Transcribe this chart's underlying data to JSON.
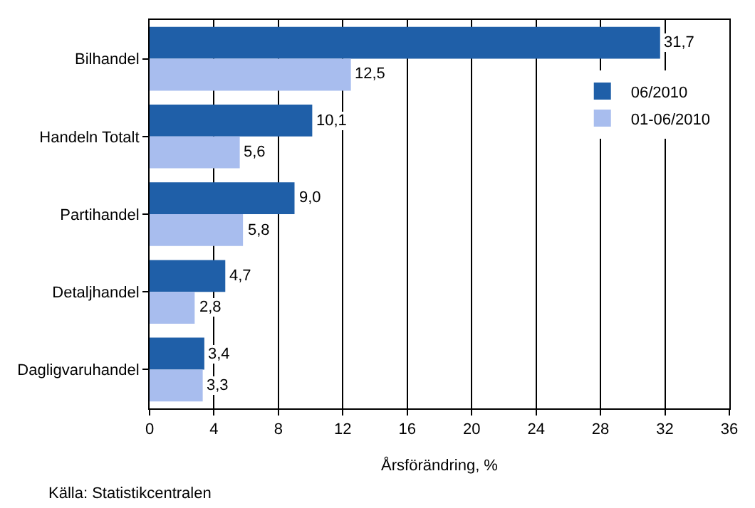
{
  "chart_data": {
    "type": "bar",
    "orientation": "horizontal",
    "xlabel": "Årsförändring, %",
    "categories": [
      "Bilhandel",
      "Handeln Totalt",
      "Partihandel",
      "Detaljhandel",
      "Dagligvaruhandel"
    ],
    "series": [
      {
        "name": "06/2010",
        "color": "#1f5fa8",
        "values": [
          31.7,
          10.1,
          9.0,
          4.7,
          3.4
        ],
        "value_labels": [
          "31,7",
          "10,1",
          "9,0",
          "4,7",
          "3,4"
        ]
      },
      {
        "name": "01-06/2010",
        "color": "#a8bdee",
        "values": [
          12.5,
          5.6,
          5.8,
          2.8,
          3.3
        ],
        "value_labels": [
          "12,5",
          "5,6",
          "5,8",
          "2,8",
          "3,3"
        ]
      }
    ],
    "xlim": [
      0,
      36
    ],
    "xticks": [
      0,
      4,
      8,
      12,
      16,
      20,
      24,
      28,
      32,
      36
    ],
    "grid": "x",
    "legend": "top right",
    "annotations": [
      "Källa: Statistikcentralen"
    ]
  }
}
